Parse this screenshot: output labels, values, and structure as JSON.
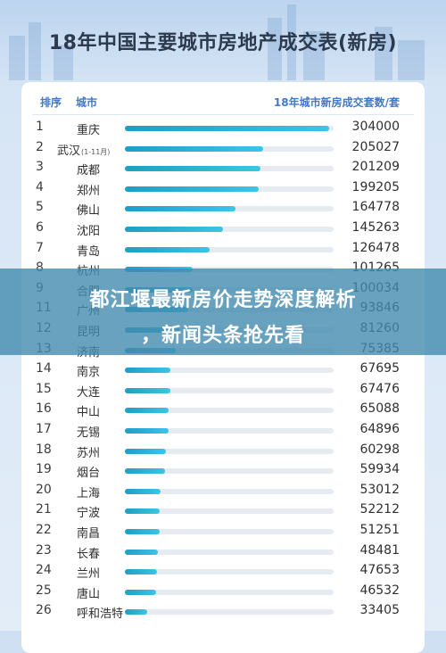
{
  "chart_data": {
    "type": "bar",
    "title": "18年中国主要城市房地产成交表(新房)",
    "header": {
      "rank": "排序",
      "city": "城市",
      "value": "18年城市新房成交套数/套"
    },
    "categories": [
      "重庆",
      "武汉",
      "成都",
      "郑州",
      "佛山",
      "沈阳",
      "青岛",
      "杭州",
      "合肥",
      "广州",
      "昆明",
      "济南",
      "南京",
      "大连",
      "中山",
      "无锡",
      "苏州",
      "烟台",
      "上海",
      "宁波",
      "南昌",
      "长春",
      "兰州",
      "唐山",
      "呼和浩特"
    ],
    "ranks": [
      "1",
      "2",
      "3",
      "4",
      "5",
      "6",
      "7",
      "8",
      "9",
      "11",
      "12",
      "13",
      "14",
      "15",
      "16",
      "17",
      "18",
      "19",
      "20",
      "21",
      "22",
      "23",
      "24",
      "25",
      "26"
    ],
    "notes": [
      "",
      "(1-11月)",
      "",
      "",
      "",
      "",
      "",
      "",
      "",
      "",
      "",
      "",
      "",
      "",
      "",
      "",
      "",
      "",
      "",
      "",
      "",
      "",
      "",
      "",
      ""
    ],
    "values": [
      304000,
      205027,
      201209,
      199205,
      164778,
      145263,
      126478,
      101265,
      100034,
      93846,
      81260,
      75385,
      67695,
      67476,
      65088,
      64896,
      60298,
      59934,
      53012,
      52212,
      51251,
      48481,
      47653,
      46532,
      33405
    ],
    "xlim": [
      0,
      310000
    ]
  },
  "overlay": {
    "line1": "都江堰最新房价走势深度解析",
    "line2": "，新闻头条抢先看"
  },
  "colors": {
    "bar": "#2aaed6",
    "track": "#e6ebf1",
    "banner": "#428baf",
    "header": "#3f79c8"
  }
}
